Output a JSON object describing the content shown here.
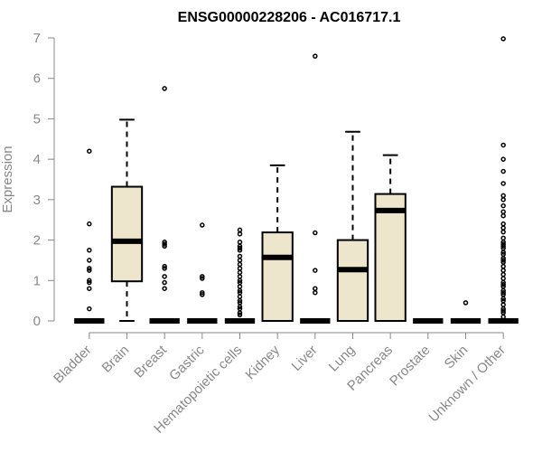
{
  "chart_data": {
    "type": "box",
    "title": "ENSG00000228206 - AC016717.1",
    "xlabel": "",
    "ylabel": "Expression",
    "ylim": [
      0,
      7
    ],
    "yticks": [
      0,
      1,
      2,
      3,
      4,
      5,
      6,
      7
    ],
    "box_fill": "#ede6cc",
    "box_stroke": "#000000",
    "axis_color": "#888888",
    "categories": [
      "Bladder",
      "Brain",
      "Breast",
      "Gastric",
      "Hematopoietic cells",
      "Kidney",
      "Liver",
      "Lung",
      "Pancreas",
      "Prostate",
      "Skin",
      "Unknown / Other"
    ],
    "boxes": [
      {
        "category": "Bladder",
        "min": 0,
        "q1": 0,
        "median": 0,
        "q3": 0,
        "max": 0,
        "outliers": [
          4.2,
          2.4,
          1.75,
          1.5,
          1.3,
          1.25,
          1.0,
          0.95,
          0.8,
          0.3
        ]
      },
      {
        "category": "Brain",
        "min": 0,
        "q1": 0.98,
        "median": 1.97,
        "q3": 3.32,
        "max": 4.98,
        "outliers": []
      },
      {
        "category": "Breast",
        "min": 0,
        "q1": 0,
        "median": 0,
        "q3": 0,
        "max": 0,
        "outliers": [
          5.75,
          1.95,
          1.9,
          1.85,
          1.35,
          1.3,
          1.1,
          0.95,
          0.8
        ]
      },
      {
        "category": "Gastric",
        "min": 0,
        "q1": 0,
        "median": 0,
        "q3": 0,
        "max": 0,
        "outliers": [
          2.37,
          1.1,
          1.05,
          0.7,
          0.65
        ]
      },
      {
        "category": "Hematopoietic cells",
        "min": 0,
        "q1": 0,
        "median": 0,
        "q3": 0,
        "max": 0,
        "outliers": [
          2.25,
          2.15,
          1.95,
          1.85,
          1.8,
          1.75,
          1.6,
          1.5,
          1.4,
          1.3,
          1.2,
          1.1,
          1.0,
          0.95,
          0.85,
          0.75,
          0.7,
          0.6,
          0.5,
          0.45,
          0.35,
          0.3,
          0.2,
          0.15
        ]
      },
      {
        "category": "Kidney",
        "min": 0,
        "q1": 0,
        "median": 1.57,
        "q3": 2.19,
        "max": 3.85,
        "outliers": []
      },
      {
        "category": "Liver",
        "min": 0,
        "q1": 0,
        "median": 0,
        "q3": 0,
        "max": 0,
        "outliers": [
          6.55,
          2.18,
          1.25,
          0.8,
          0.7
        ]
      },
      {
        "category": "Lung",
        "min": 0,
        "q1": 0,
        "median": 1.27,
        "q3": 2.0,
        "max": 4.68,
        "outliers": []
      },
      {
        "category": "Pancreas",
        "min": 0,
        "q1": 0,
        "median": 2.73,
        "q3": 3.14,
        "max": 4.1,
        "outliers": []
      },
      {
        "category": "Prostate",
        "min": 0,
        "q1": 0,
        "median": 0,
        "q3": 0,
        "max": 0,
        "outliers": []
      },
      {
        "category": "Skin",
        "min": 0,
        "q1": 0,
        "median": 0,
        "q3": 0,
        "max": 0,
        "outliers": [
          0.45
        ]
      },
      {
        "category": "Unknown / Other",
        "min": 0,
        "q1": 0,
        "median": 0,
        "q3": 0,
        "max": 0,
        "outliers": [
          6.98,
          4.35,
          4.0,
          3.7,
          3.4,
          3.1,
          3.0,
          2.85,
          2.7,
          2.6,
          2.4,
          2.3,
          2.2,
          2.05,
          1.95,
          1.9,
          1.85,
          1.8,
          1.7,
          1.65,
          1.55,
          1.5,
          1.45,
          1.35,
          1.25,
          1.15,
          1.05,
          0.95,
          0.9,
          0.85,
          0.75,
          0.7,
          0.65,
          0.55,
          0.5,
          0.4,
          0.3,
          0.25,
          0.2,
          0.1
        ]
      }
    ]
  }
}
